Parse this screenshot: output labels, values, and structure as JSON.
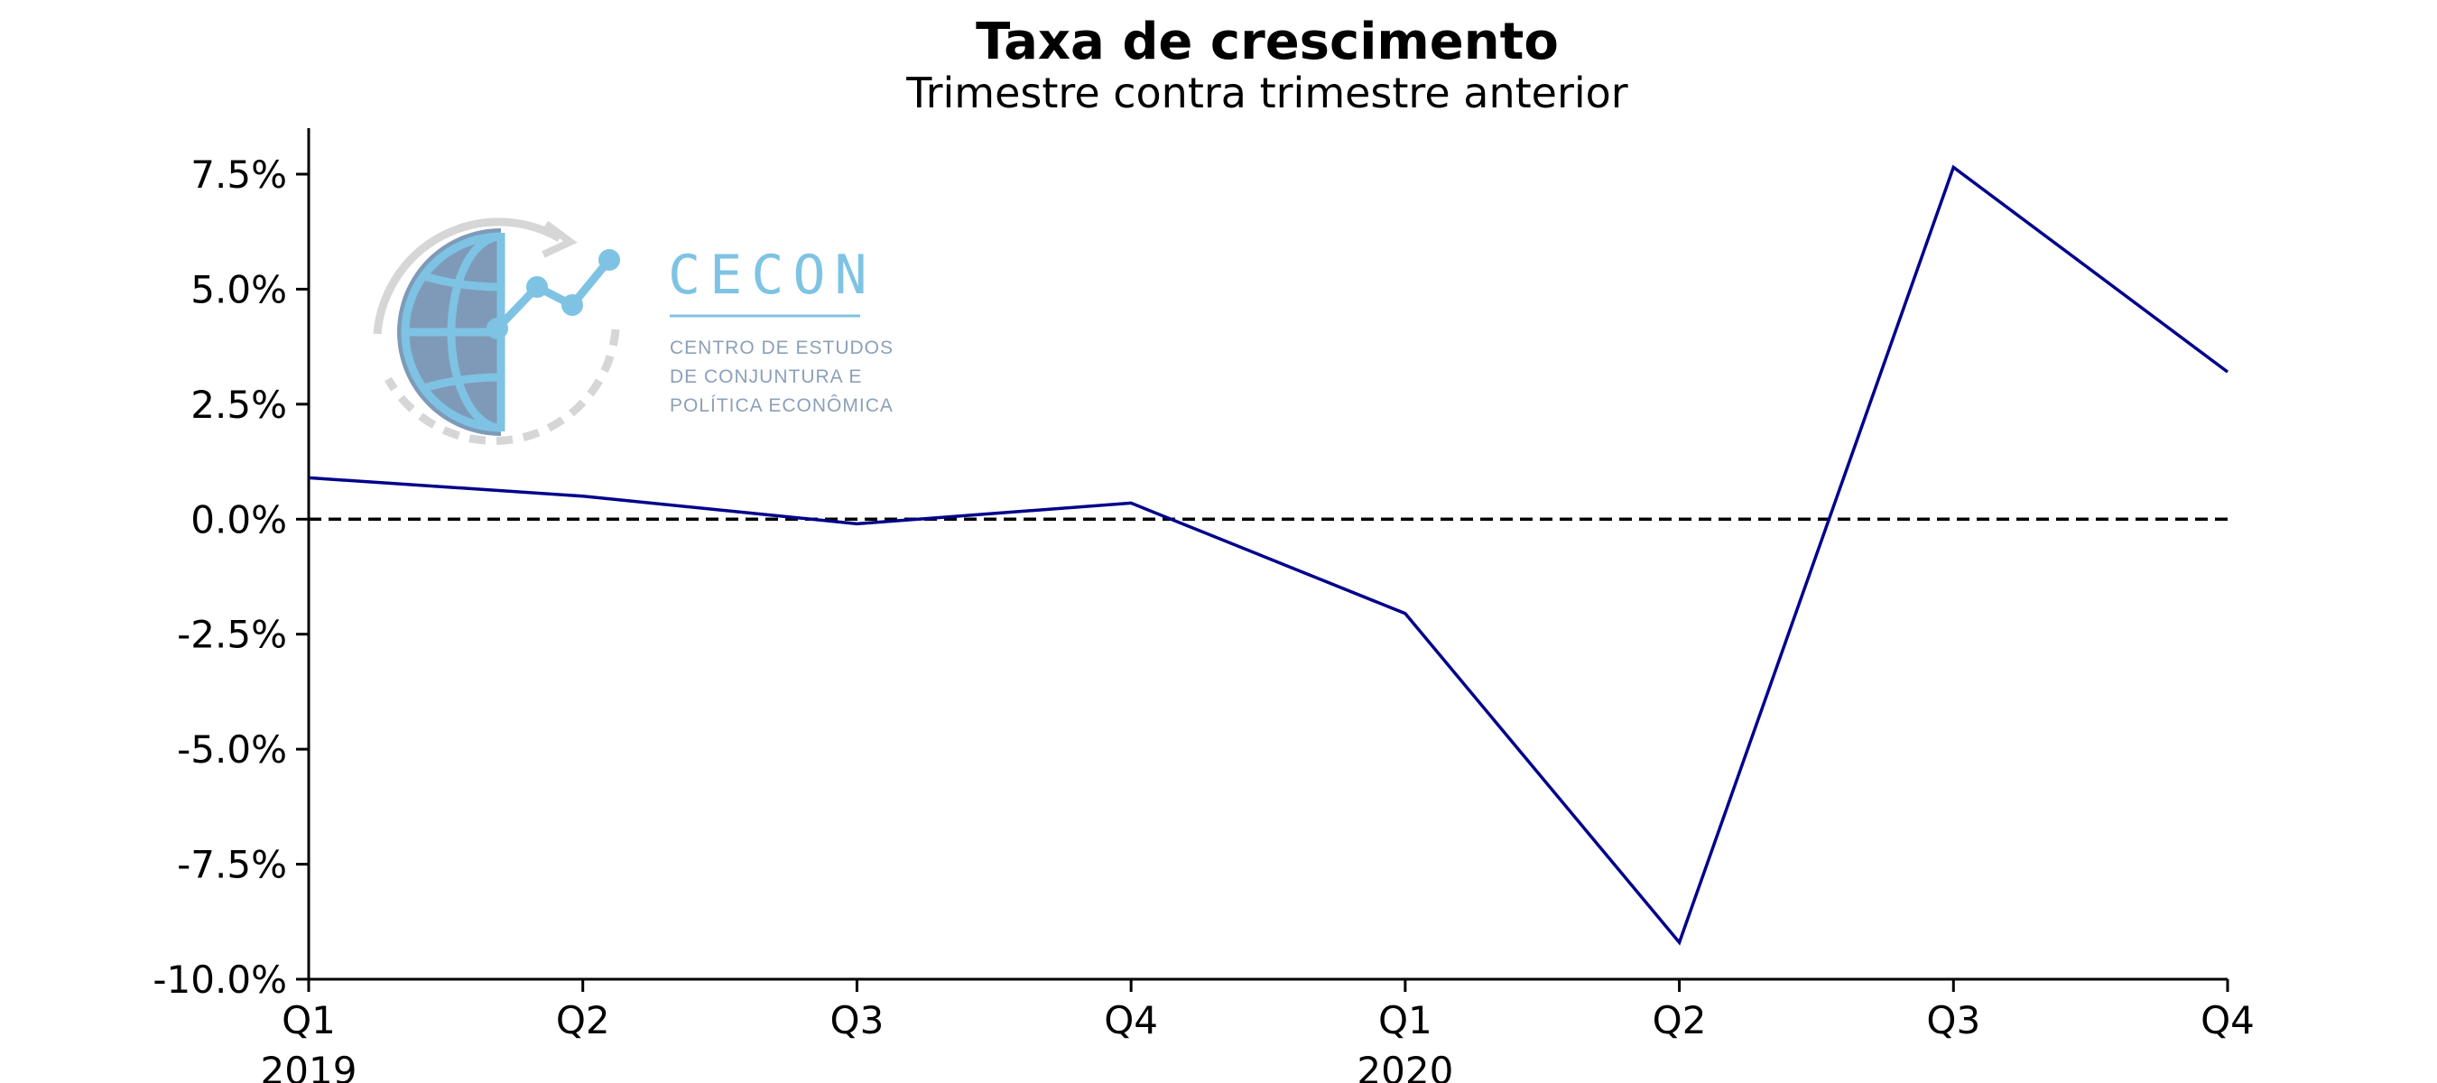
{
  "chart_data": {
    "type": "line",
    "title": "Taxa de crescimento",
    "subtitle": "Trimestre contra trimestre anterior",
    "categories": [
      "Q1",
      "Q2",
      "Q3",
      "Q4",
      "Q1",
      "Q2",
      "Q3",
      "Q4"
    ],
    "year_labels": [
      {
        "index": 0,
        "label": "2019"
      },
      {
        "index": 4,
        "label": "2020"
      }
    ],
    "series": [
      {
        "values": [
          0.9,
          0.5,
          -0.1,
          0.35,
          -2.05,
          -9.2,
          7.65,
          3.2
        ],
        "color": "#00008b"
      }
    ],
    "ylim": [
      -10.0,
      8.5
    ],
    "yticks": [
      -10.0,
      -7.5,
      -5.0,
      -2.5,
      0.0,
      2.5,
      5.0,
      7.5
    ],
    "ytick_labels": [
      "-10.0%",
      "-7.5%",
      "-5.0%",
      "-2.5%",
      "0.0%",
      "2.5%",
      "5.0%",
      "7.5%"
    ],
    "reference_line": {
      "y": 0.0,
      "style": "dashed",
      "color": "#000000"
    },
    "grid": false,
    "legend": "none"
  },
  "logo": {
    "title": "CECON",
    "subtitle_lines": [
      "CENTRO DE ESTUDOS",
      "DE CONJUNTURA E",
      "POLÍTICA ECONÔMICA"
    ],
    "accent_color": "#7ec3e3",
    "globe_color": "#7f9ab8"
  }
}
